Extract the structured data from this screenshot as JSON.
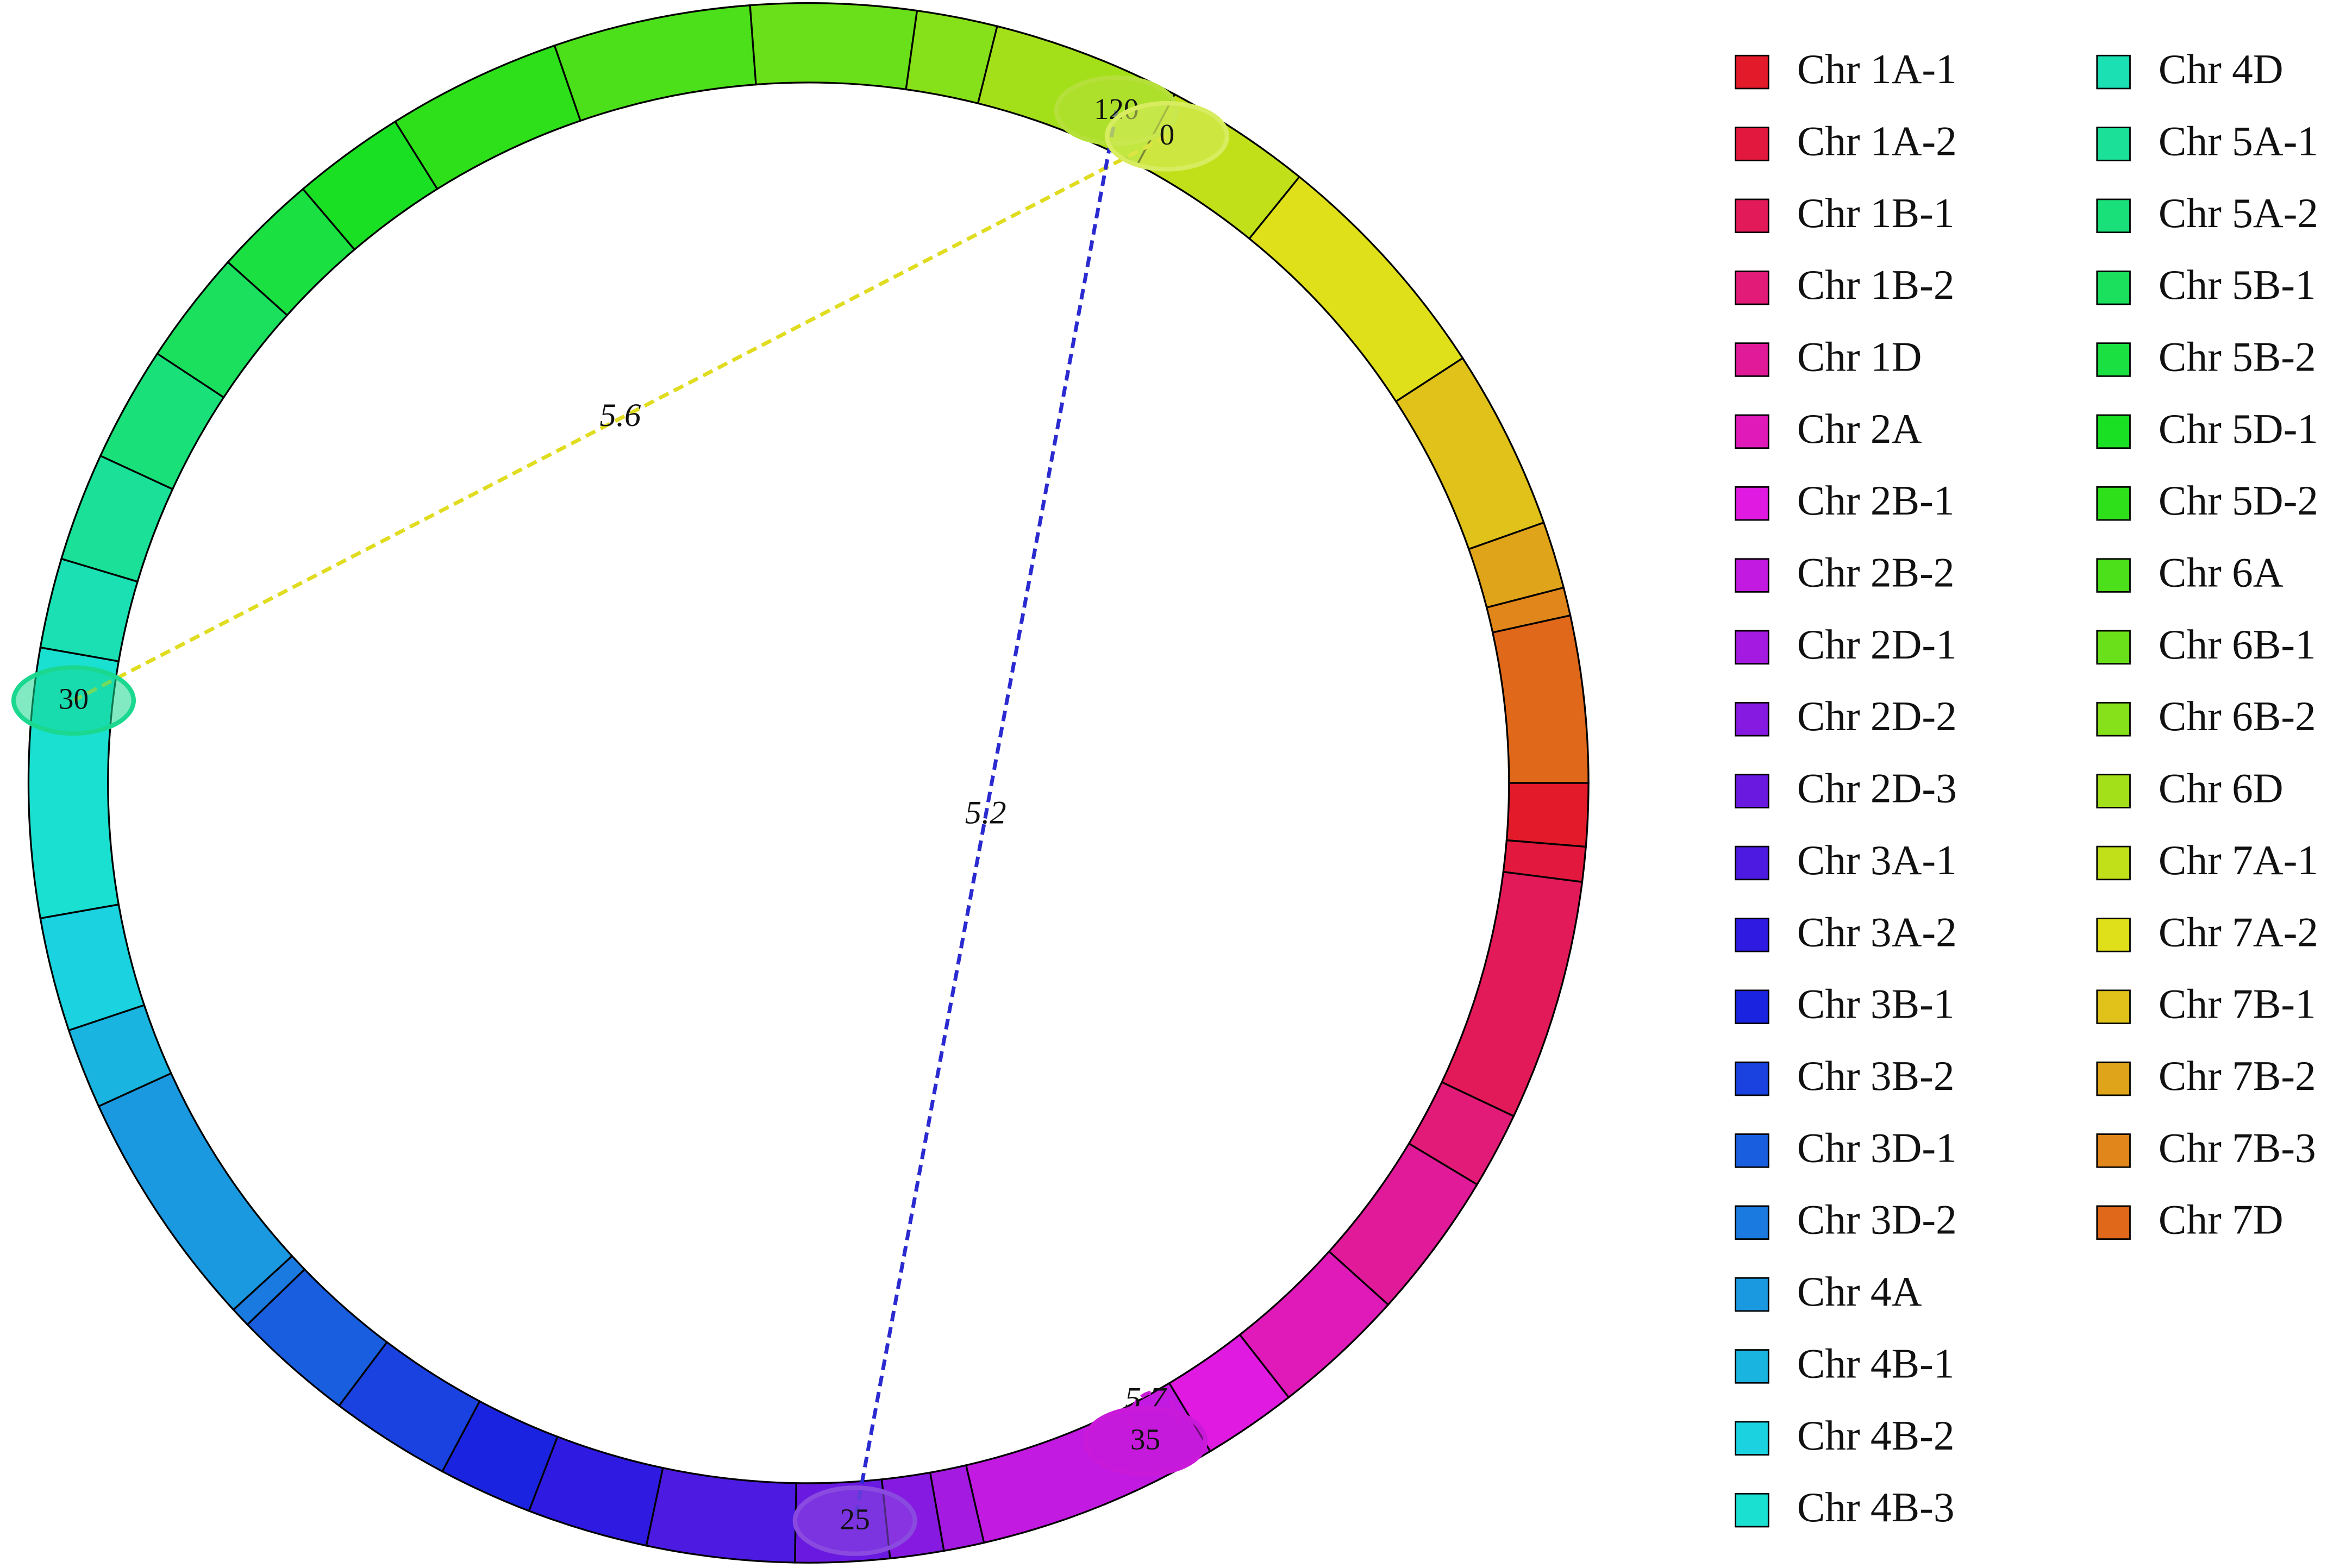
{
  "chart_data": {
    "type": "chord",
    "categories": [
      "Chr 1A-1",
      "Chr 1A-2",
      "Chr 1B-1",
      "Chr 1B-2",
      "Chr 1D",
      "Chr 2A",
      "Chr 2B-1",
      "Chr 2B-2",
      "Chr 2D-1",
      "Chr 2D-2",
      "Chr 2D-3",
      "Chr 3A-1",
      "Chr 3A-2",
      "Chr 3B-1",
      "Chr 3B-2",
      "Chr 3D-1",
      "Chr 3D-2",
      "Chr 4A",
      "Chr 4B-1",
      "Chr 4B-2",
      "Chr 4B-3",
      "Chr 4D",
      "Chr 5A-1",
      "Chr 5A-2",
      "Chr 5B-1",
      "Chr 5B-2",
      "Chr 5D-1",
      "Chr 5D-2",
      "Chr 6A",
      "Chr 6B-1",
      "Chr 6B-2",
      "Chr 6D",
      "Chr 7A-1",
      "Chr 7A-2",
      "Chr 7B-1",
      "Chr 7B-2",
      "Chr 7B-3",
      "Chr 7D"
    ],
    "colors": [
      "#e31a2a",
      "#e3183e",
      "#e31a5a",
      "#e31b78",
      "#e01a98",
      "#e01ab8",
      "#e01ae0",
      "#c21ae0",
      "#a41ae0",
      "#861ae0",
      "#6a1ae0",
      "#4c1ae0",
      "#2e1ae0",
      "#1a24e0",
      "#1a42e0",
      "#1a5ee0",
      "#1a7ae0",
      "#1a98e0",
      "#1ab4e0",
      "#1ad2e0",
      "#1ae0d2",
      "#1ae0b4",
      "#1ae098",
      "#1ae07a",
      "#1ae05e",
      "#1ae042",
      "#1ae024",
      "#2ee01a",
      "#4ce01a",
      "#6ae01a",
      "#86e01a",
      "#a4e01a",
      "#c2e01a",
      "#e0e01a",
      "#e0c21a",
      "#e0a41a",
      "#e0861a",
      "#e0681a"
    ],
    "values": [
      4.7,
      2.6,
      18,
      5.7,
      11,
      10,
      7,
      18,
      3,
      4,
      7,
      11,
      9,
      7,
      9,
      9,
      1.5,
      18,
      6,
      8.5,
      20,
      6.7,
      8.1,
      8.6,
      8.5,
      7.7,
      8.4,
      13,
      14.7,
      12.3,
      6,
      14,
      11,
      18,
      13.5,
      5,
      2.1,
      12.4
    ],
    "markers": [
      {
        "label": "120",
        "position": 294.6,
        "color": "#b5e03a"
      },
      {
        "label": "0",
        "position": 299,
        "color": "#d8ec60"
      },
      {
        "label": "30",
        "position": 186.4,
        "color": "#1ad890"
      },
      {
        "label": "35",
        "position": 62.9,
        "color": "#c81ad8"
      },
      {
        "label": "25",
        "position": 86.4,
        "color": "#8a4ae0"
      }
    ],
    "links": [
      {
        "source": 1,
        "target": 2,
        "label": "5.6",
        "color": "#e0dc20"
      },
      {
        "source": 0,
        "target": 4,
        "label": "5.2",
        "color": "#2a2ad0"
      },
      {
        "source": 3,
        "target": 3,
        "label": "5.7",
        "color": "#c81ad8"
      }
    ]
  }
}
